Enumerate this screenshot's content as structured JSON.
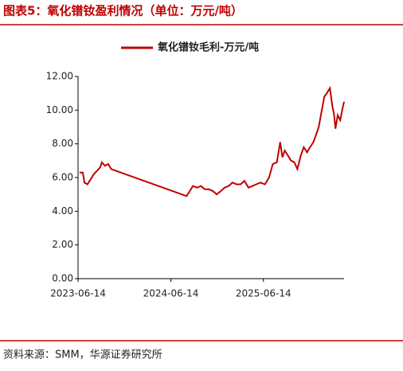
{
  "chart_data": {
    "type": "line",
    "title": "图表5：氧化镨钕盈利情况（单位：万元/吨）",
    "source": "资料来源：SMM，华源证券研究所",
    "x": [
      "2023-06-20",
      "2023-07-03",
      "2023-07-09",
      "2023-07-21",
      "2023-08-03",
      "2023-08-15",
      "2023-08-28",
      "2023-09-09",
      "2023-09-16",
      "2023-09-28",
      "2023-10-11",
      "2023-10-23",
      "2024-08-15",
      "2024-08-28",
      "2024-09-09",
      "2024-09-25",
      "2024-10-11",
      "2024-10-26",
      "2024-11-11",
      "2024-11-26",
      "2024-12-12",
      "2024-12-28",
      "2025-01-12",
      "2025-01-28",
      "2025-02-12",
      "2025-02-28",
      "2025-03-16",
      "2025-03-31",
      "2025-04-16",
      "2025-05-02",
      "2025-05-17",
      "2025-06-02",
      "2025-06-20",
      "2025-07-06",
      "2025-07-21",
      "2025-08-06",
      "2025-08-19",
      "2025-08-28",
      "2025-09-06",
      "2025-09-19",
      "2025-10-01",
      "2025-10-14",
      "2025-10-26",
      "2025-11-08",
      "2025-11-20",
      "2025-12-03",
      "2025-12-15",
      "2025-12-28",
      "2026-01-09",
      "2026-01-18",
      "2026-01-28",
      "2026-02-09",
      "2026-02-19",
      "2026-03-03",
      "2026-03-13",
      "2026-03-19",
      "2026-03-25",
      "2026-04-03",
      "2026-04-13",
      "2026-04-22",
      "2026-04-28"
    ],
    "series": [
      {
        "name": "氧化镨钕毛利-万元/吨",
        "color": "#c00000",
        "values": [
          6.3,
          6.3,
          5.7,
          5.6,
          5.9,
          6.2,
          6.4,
          6.6,
          6.9,
          6.7,
          6.8,
          6.5,
          4.9,
          5.2,
          5.5,
          5.4,
          5.5,
          5.3,
          5.3,
          5.2,
          5.0,
          5.2,
          5.4,
          5.5,
          5.7,
          5.6,
          5.6,
          5.8,
          5.4,
          5.5,
          5.6,
          5.7,
          5.6,
          6.0,
          6.8,
          6.9,
          8.1,
          7.2,
          7.6,
          7.3,
          7.0,
          6.9,
          6.5,
          7.3,
          7.8,
          7.5,
          7.8,
          8.1,
          8.6,
          9.0,
          9.8,
          10.8,
          11.0,
          11.3,
          10.2,
          9.8,
          8.9,
          9.7,
          9.4,
          10.1,
          10.5
        ]
      }
    ],
    "xlim": [
      "2023-06-14",
      "2026-04-28"
    ],
    "xticks": [
      "2023-06-14",
      "2024-06-14",
      "2025-06-14"
    ],
    "ylim": [
      0,
      12
    ],
    "yticks": [
      {
        "value": 0,
        "label": "0.00"
      },
      {
        "value": 2,
        "label": "2.00"
      },
      {
        "value": 4,
        "label": "4.00"
      },
      {
        "value": 6,
        "label": "6.00"
      },
      {
        "value": 8,
        "label": "8.00"
      },
      {
        "value": 10,
        "label": "10.00"
      },
      {
        "value": 12,
        "label": "12.00"
      }
    ],
    "legend": "top"
  }
}
